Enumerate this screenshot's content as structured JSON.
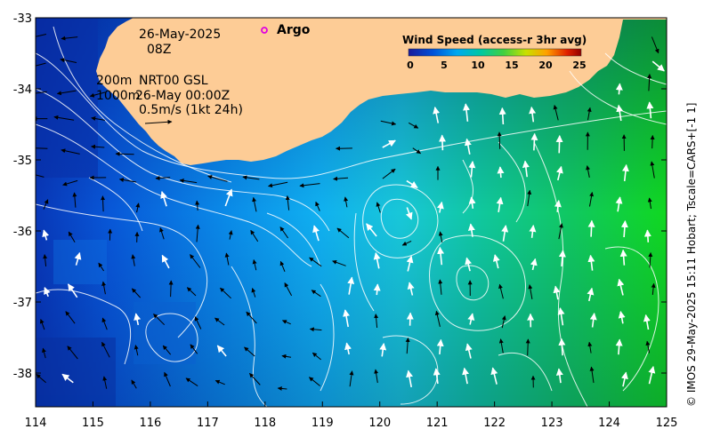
{
  "map": {
    "x_ticks": [
      "114",
      "115",
      "116",
      "117",
      "118",
      "119",
      "120",
      "121",
      "122",
      "123",
      "124",
      "125"
    ],
    "y_ticks": [
      "-33",
      "-34",
      "-35",
      "-36",
      "-37",
      "-38"
    ]
  },
  "annotation": {
    "date": "26-May-2025",
    "hour": "08Z",
    "line_200m": "200m",
    "line_1000m": "1000m",
    "product": "NRT00 GSL",
    "product_time": "26-May 00:00Z",
    "scale_arrow": "0.5m/s (1kt 24h)"
  },
  "argo": {
    "label": "Argo",
    "marker_color": "#e000e0"
  },
  "legend": {
    "title": "Wind Speed (access-r 3hr avg)",
    "ticks": [
      "0",
      "5",
      "10",
      "15",
      "20",
      "25"
    ],
    "range": [
      0,
      25
    ],
    "colors": [
      "#1a1a9a",
      "#0050d8",
      "#00a8f0",
      "#00c8a0",
      "#40d040",
      "#c8e000",
      "#ffa000",
      "#e02000",
      "#900000"
    ]
  },
  "credit": "© IMOS 29-May-2025 15:11 Hobart; Tscale=CARS+[-1 1]",
  "colors": {
    "land": "#fdcc96",
    "ocean_west": "#0a48c8",
    "ocean_mid": "#18a8ee",
    "ocean_east": "#10d820",
    "contour": "#ffffff",
    "arrow_slow": "#000000",
    "arrow_fast": "#ffffff"
  }
}
